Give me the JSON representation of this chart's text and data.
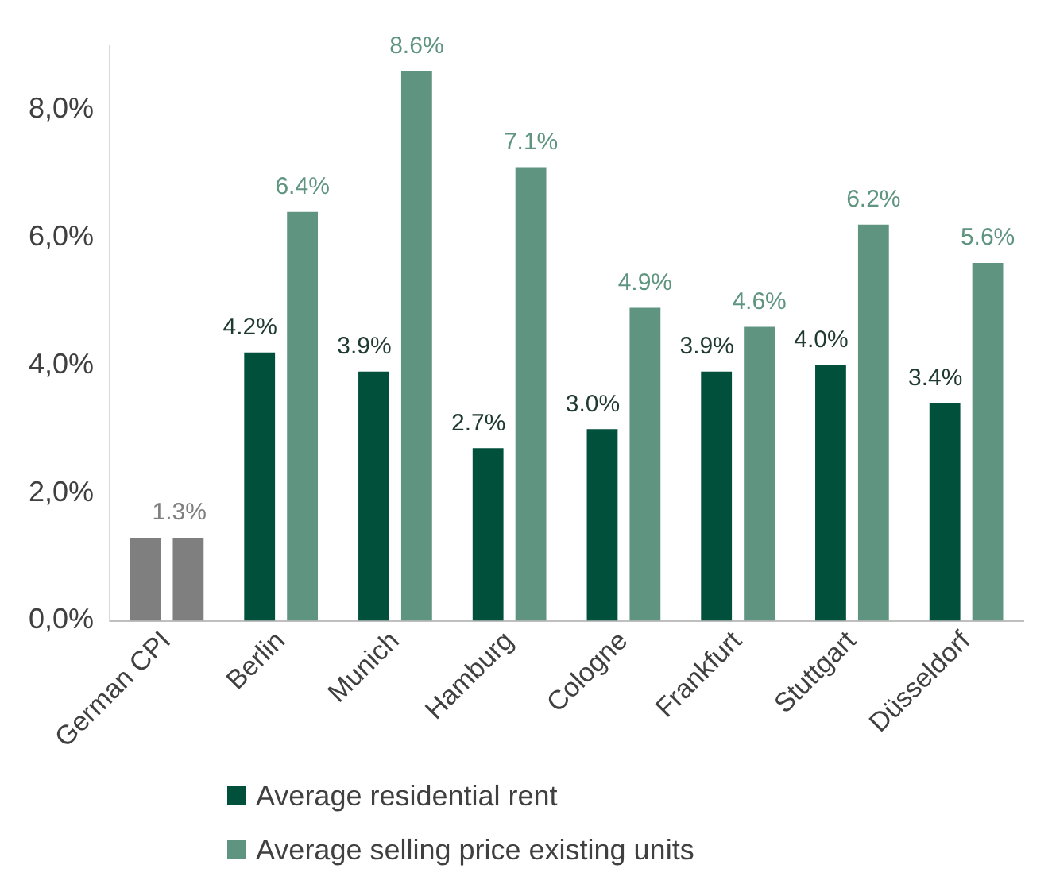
{
  "chart_data": {
    "type": "bar",
    "categories": [
      "German CPI",
      "Berlin",
      "Munich",
      "Hamburg",
      "Cologne",
      "Frankfurt",
      "Stuttgart",
      "Düsseldorf"
    ],
    "series": [
      {
        "name": "Average residential rent",
        "color": "#00503c",
        "colors": [
          "#7f7f7f",
          "#00503c",
          "#00503c",
          "#00503c",
          "#00503c",
          "#00503c",
          "#00503c",
          "#00503c"
        ],
        "values": [
          1.3,
          4.2,
          3.9,
          2.7,
          3.0,
          3.9,
          4.0,
          3.4
        ],
        "value_labels": [
          "1.3%",
          "4.2%",
          "3.9%",
          "2.7%",
          "3.0%",
          "3.9%",
          "4.0%",
          "3.4%"
        ]
      },
      {
        "name": "Average selling price existing units",
        "color": "#5f9480",
        "colors": [
          "#7f7f7f",
          "#5f9480",
          "#5f9480",
          "#5f9480",
          "#5f9480",
          "#5f9480",
          "#5f9480",
          "#5f9480"
        ],
        "values": [
          1.3,
          6.4,
          8.6,
          7.1,
          4.9,
          4.6,
          6.2,
          5.6
        ],
        "value_labels": [
          null,
          "6.4%",
          "8.6%",
          "7.1%",
          "4.9%",
          "4.6%",
          "6.2%",
          "5.6%"
        ]
      }
    ],
    "ylim": [
      0,
      9
    ],
    "yticks": [
      {
        "value": 0,
        "label": "0,0%"
      },
      {
        "value": 2,
        "label": "2,0%"
      },
      {
        "value": 4,
        "label": "4,0%"
      },
      {
        "value": 6,
        "label": "6,0%"
      },
      {
        "value": 8,
        "label": "8,0%"
      }
    ],
    "grid": false,
    "legend": "bottom"
  }
}
